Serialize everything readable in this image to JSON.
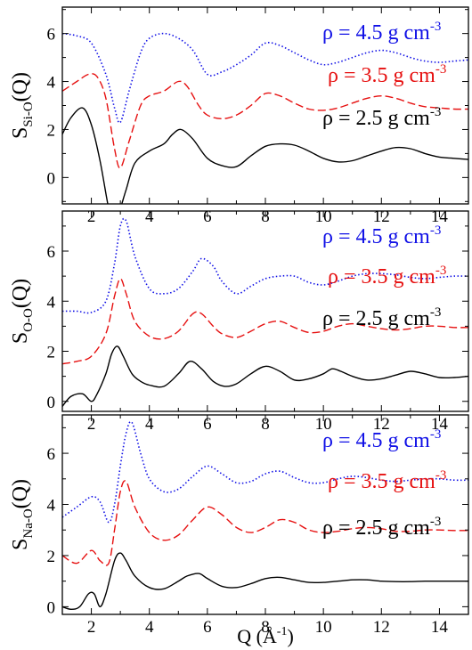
{
  "figure": {
    "xlabel_main": "Q (",
    "xlabel_unit": "Å",
    "xlabel_exp": "-1",
    "xlabel_close": ")"
  },
  "legend_unit": " g cm",
  "legend_exp": "-3",
  "colors": {
    "rho_45": "#1010e6",
    "rho_35": "#e61010",
    "rho_25": "#000000"
  },
  "chart_data": [
    {
      "type": "line",
      "ylabel_main": "S",
      "ylabel_sub": "Si-O",
      "ylabel_tail": "(Q)",
      "xlim": [
        1,
        15
      ],
      "ylim": [
        -1.1,
        7.1
      ],
      "xticks": [
        2,
        4,
        6,
        8,
        10,
        12,
        14
      ],
      "yticks": [
        0,
        2,
        4,
        6
      ],
      "series": [
        {
          "name": "ρ = 4.5",
          "style": "dotted",
          "color": "#1010e6",
          "x": [
            1.0,
            1.5,
            2.0,
            2.5,
            2.8,
            3.0,
            3.3,
            3.7,
            4.0,
            4.5,
            5.0,
            5.5,
            6.0,
            6.5,
            7.0,
            7.5,
            8.0,
            8.5,
            9.0,
            9.5,
            10.0,
            10.5,
            11.0,
            11.5,
            12.0,
            12.5,
            13.0,
            13.5,
            14.0,
            14.5,
            15.0
          ],
          "y": [
            6.0,
            5.9,
            5.6,
            4.3,
            2.9,
            2.3,
            3.6,
            5.2,
            5.8,
            6.0,
            5.8,
            5.3,
            4.3,
            4.4,
            4.7,
            5.1,
            5.6,
            5.5,
            5.2,
            4.9,
            4.7,
            4.8,
            5.0,
            5.2,
            5.3,
            5.2,
            5.0,
            4.85,
            4.8,
            4.85,
            4.9
          ]
        },
        {
          "name": "ρ = 3.5",
          "style": "dashed",
          "color": "#e61010",
          "x": [
            1.0,
            1.5,
            1.9,
            2.2,
            2.5,
            2.8,
            3.0,
            3.3,
            3.7,
            4.0,
            4.5,
            5.0,
            5.3,
            5.7,
            6.0,
            6.5,
            7.0,
            7.5,
            8.0,
            8.5,
            9.0,
            9.5,
            10.0,
            10.5,
            11.0,
            11.5,
            12.0,
            12.5,
            13.0,
            13.5,
            14.0,
            14.5,
            15.0
          ],
          "y": [
            3.6,
            4.0,
            4.3,
            4.2,
            3.3,
            1.2,
            0.4,
            1.5,
            3.0,
            3.4,
            3.6,
            4.0,
            3.8,
            3.0,
            2.6,
            2.45,
            2.6,
            3.0,
            3.5,
            3.4,
            3.1,
            2.85,
            2.8,
            2.9,
            3.1,
            3.3,
            3.4,
            3.3,
            3.1,
            2.95,
            2.9,
            2.85,
            2.85
          ]
        },
        {
          "name": "ρ = 2.5",
          "style": "solid",
          "color": "#000000",
          "x": [
            1.0,
            1.3,
            1.7,
            2.0,
            2.3,
            2.6,
            2.8,
            3.0,
            3.2,
            3.5,
            4.0,
            4.5,
            4.8,
            5.1,
            5.5,
            6.0,
            6.5,
            7.0,
            7.5,
            8.0,
            8.5,
            9.0,
            9.5,
            10.0,
            10.5,
            11.0,
            11.5,
            12.0,
            12.5,
            13.0,
            13.5,
            14.0,
            14.5,
            15.0
          ],
          "y": [
            1.8,
            2.5,
            2.9,
            2.2,
            0.7,
            -1.3,
            -2.0,
            -1.3,
            -0.5,
            0.6,
            1.1,
            1.4,
            1.8,
            2.0,
            1.6,
            0.8,
            0.5,
            0.45,
            0.9,
            1.3,
            1.4,
            1.35,
            1.1,
            0.8,
            0.65,
            0.7,
            0.9,
            1.1,
            1.25,
            1.2,
            1.0,
            0.85,
            0.8,
            0.75
          ]
        }
      ]
    },
    {
      "type": "line",
      "ylabel_main": "S",
      "ylabel_sub": "O-O",
      "ylabel_tail": "(Q)",
      "xlim": [
        1,
        15
      ],
      "ylim": [
        -0.4,
        7.6
      ],
      "xticks": [
        2,
        4,
        6,
        8,
        10,
        12,
        14
      ],
      "yticks": [
        0,
        2,
        4,
        6
      ],
      "series": [
        {
          "name": "ρ = 4.5",
          "style": "dotted",
          "color": "#1010e6",
          "x": [
            1.0,
            1.5,
            2.0,
            2.5,
            2.8,
            3.0,
            3.2,
            3.5,
            4.0,
            4.5,
            5.0,
            5.5,
            5.8,
            6.2,
            6.5,
            7.0,
            7.5,
            8.0,
            8.5,
            9.0,
            9.5,
            10.0,
            10.5,
            11.0,
            11.5,
            12.0,
            12.5,
            13.0,
            13.5,
            14.0,
            14.5,
            15.0
          ],
          "y": [
            3.6,
            3.6,
            3.55,
            4.0,
            5.5,
            7.0,
            7.2,
            5.8,
            4.5,
            4.3,
            4.5,
            5.2,
            5.7,
            5.4,
            4.8,
            4.3,
            4.6,
            4.9,
            5.0,
            5.0,
            4.75,
            4.65,
            4.8,
            5.0,
            5.1,
            5.1,
            5.05,
            4.95,
            4.9,
            4.95,
            5.0,
            5.0
          ]
        },
        {
          "name": "ρ = 3.5",
          "style": "dashed",
          "color": "#e61010",
          "x": [
            1.0,
            1.5,
            2.0,
            2.5,
            2.8,
            3.0,
            3.2,
            3.5,
            4.0,
            4.5,
            5.0,
            5.5,
            5.8,
            6.2,
            6.5,
            7.0,
            7.5,
            8.0,
            8.5,
            9.0,
            9.5,
            10.0,
            10.5,
            11.0,
            11.5,
            12.0,
            12.5,
            13.0,
            13.5,
            14.0,
            14.5,
            15.0
          ],
          "y": [
            1.5,
            1.6,
            1.8,
            2.7,
            4.2,
            4.9,
            4.3,
            3.2,
            2.6,
            2.5,
            2.8,
            3.5,
            3.5,
            3.0,
            2.7,
            2.55,
            2.8,
            3.1,
            3.2,
            2.95,
            2.75,
            2.8,
            3.0,
            3.1,
            3.0,
            2.9,
            2.85,
            2.9,
            3.0,
            3.0,
            2.95,
            2.95
          ]
        },
        {
          "name": "ρ = 2.5",
          "style": "solid",
          "color": "#000000",
          "x": [
            1.0,
            1.3,
            1.7,
            2.0,
            2.2,
            2.5,
            2.7,
            2.9,
            3.1,
            3.4,
            3.7,
            4.0,
            4.5,
            5.0,
            5.4,
            5.8,
            6.2,
            6.6,
            7.0,
            7.5,
            8.0,
            8.5,
            9.0,
            9.5,
            10.0,
            10.3,
            10.6,
            11.0,
            11.5,
            12.0,
            12.5,
            13.0,
            13.5,
            14.0,
            14.5,
            15.0
          ],
          "y": [
            -0.2,
            0.2,
            0.3,
            0.0,
            0.3,
            1.1,
            1.9,
            2.2,
            1.8,
            1.1,
            0.8,
            0.65,
            0.6,
            1.1,
            1.6,
            1.3,
            0.8,
            0.6,
            0.7,
            1.1,
            1.4,
            1.2,
            0.85,
            0.9,
            1.1,
            1.3,
            1.2,
            1.0,
            0.85,
            0.9,
            1.05,
            1.2,
            1.1,
            0.95,
            0.95,
            1.0
          ]
        }
      ]
    },
    {
      "type": "line",
      "ylabel_main": "S",
      "ylabel_sub": "Na-O",
      "ylabel_tail": "(Q)",
      "xlim": [
        1,
        15
      ],
      "ylim": [
        -0.3,
        7.5
      ],
      "xticks": [
        2,
        4,
        6,
        8,
        10,
        12,
        14
      ],
      "yticks": [
        0,
        2,
        4,
        6
      ],
      "series": [
        {
          "name": "ρ = 4.5",
          "style": "dotted",
          "color": "#1010e6",
          "x": [
            1.0,
            1.5,
            2.0,
            2.3,
            2.6,
            2.8,
            3.0,
            3.2,
            3.4,
            3.7,
            4.0,
            4.5,
            5.0,
            5.5,
            6.0,
            6.5,
            7.0,
            7.5,
            8.0,
            8.5,
            9.0,
            9.5,
            10.0,
            10.5,
            11.0,
            11.5,
            12.0,
            12.5,
            13.0,
            13.5,
            14.0,
            14.5,
            15.0
          ],
          "y": [
            3.5,
            3.9,
            4.3,
            4.1,
            3.3,
            4.0,
            5.5,
            6.8,
            7.2,
            6.0,
            5.0,
            4.5,
            4.6,
            5.1,
            5.5,
            5.2,
            4.85,
            4.9,
            5.2,
            5.3,
            5.05,
            4.85,
            4.85,
            5.0,
            5.1,
            5.05,
            4.95,
            4.9,
            4.95,
            5.0,
            5.0,
            4.95,
            4.95
          ]
        },
        {
          "name": "ρ = 3.5",
          "style": "dashed",
          "color": "#e61010",
          "x": [
            1.0,
            1.5,
            2.0,
            2.3,
            2.6,
            2.8,
            3.0,
            3.2,
            3.5,
            4.0,
            4.5,
            5.0,
            5.5,
            6.0,
            6.5,
            7.0,
            7.5,
            8.0,
            8.5,
            9.0,
            9.5,
            10.0,
            10.5,
            11.0,
            11.5,
            12.0,
            12.5,
            13.0,
            13.5,
            14.0,
            14.5,
            15.0
          ],
          "y": [
            2.0,
            1.7,
            2.2,
            1.8,
            1.7,
            3.0,
            4.5,
            4.9,
            3.9,
            2.9,
            2.6,
            2.8,
            3.4,
            3.9,
            3.6,
            3.1,
            2.9,
            3.1,
            3.4,
            3.3,
            3.0,
            2.9,
            2.95,
            3.05,
            3.1,
            3.05,
            2.95,
            2.95,
            3.0,
            3.0,
            2.98,
            2.98
          ]
        },
        {
          "name": "ρ = 2.5",
          "style": "solid",
          "color": "#000000",
          "x": [
            1.0,
            1.3,
            1.6,
            1.9,
            2.1,
            2.3,
            2.5,
            2.8,
            3.0,
            3.2,
            3.5,
            4.0,
            4.5,
            5.0,
            5.3,
            5.7,
            6.0,
            6.5,
            7.0,
            7.5,
            8.0,
            8.5,
            9.0,
            9.5,
            10.0,
            10.5,
            11.0,
            11.5,
            12.0,
            12.5,
            13.0,
            13.5,
            14.0,
            14.5,
            15.0
          ],
          "y": [
            0.0,
            -0.1,
            0.0,
            0.5,
            0.5,
            0.0,
            0.5,
            1.8,
            2.1,
            1.8,
            1.2,
            0.75,
            0.7,
            1.0,
            1.2,
            1.3,
            1.1,
            0.8,
            0.75,
            0.9,
            1.1,
            1.15,
            1.05,
            0.95,
            0.95,
            1.0,
            1.05,
            1.05,
            1.0,
            0.98,
            0.98,
            1.0,
            1.0,
            1.0,
            1.0
          ]
        }
      ]
    }
  ]
}
